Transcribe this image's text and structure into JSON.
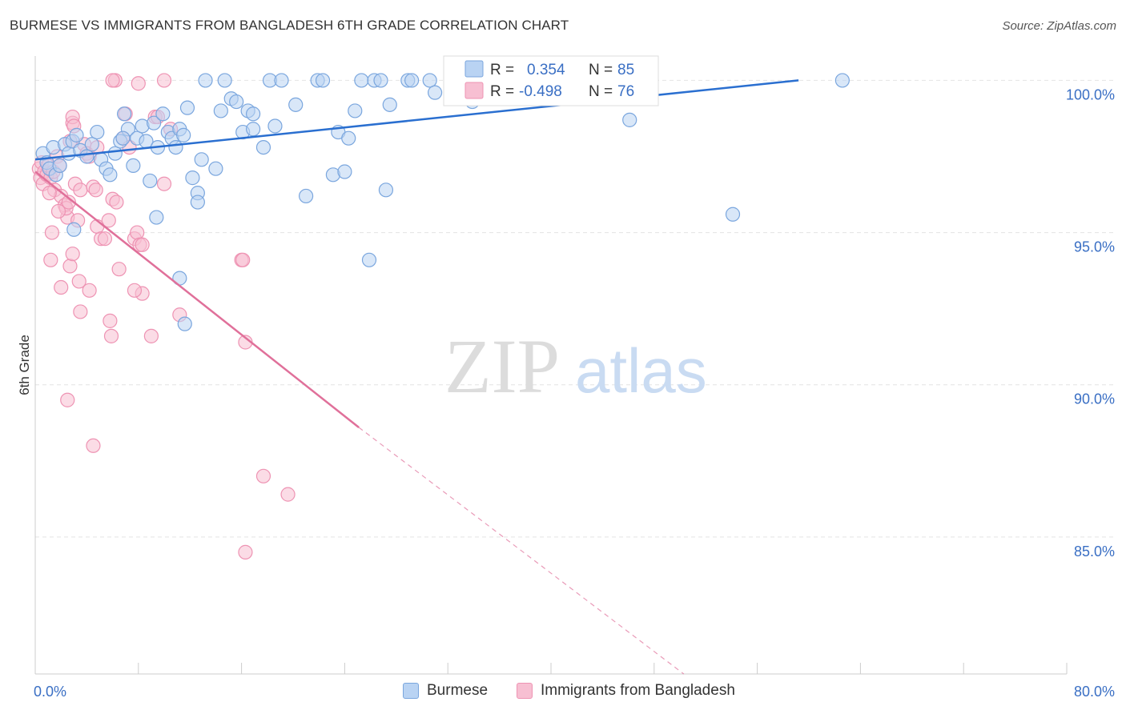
{
  "title": "BURMESE VS IMMIGRANTS FROM BANGLADESH 6TH GRADE CORRELATION CHART",
  "source": "Source: ZipAtlas.com",
  "watermark": {
    "zip": "ZIP",
    "atlas": "atlas"
  },
  "legend_stats": [
    {
      "r_label": "R =",
      "r_value": "0.354",
      "n_label": "N =",
      "n_value": "85"
    },
    {
      "r_label": "R =",
      "r_value": "-0.498",
      "n_label": "N =",
      "n_value": "76"
    }
  ],
  "colors": {
    "burmese_fill": "#b9d3f3",
    "burmese_stroke": "#7aa6de",
    "burmese_line": "#2a6fd0",
    "bangladesh_fill": "#f7bfd2",
    "bangladesh_stroke": "#ee93b3",
    "bangladesh_line": "#e0709a",
    "value_text": "#3a6fc4"
  },
  "chart_data": {
    "type": "scatter",
    "title": "BURMESE VS IMMIGRANTS FROM BANGLADESH 6TH GRADE CORRELATION CHART",
    "xlabel": "",
    "ylabel": "6th Grade",
    "xlim": [
      0,
      80
    ],
    "ylim": [
      80.5,
      100.8
    ],
    "x_tick_labels": [
      "0.0%",
      "80.0%"
    ],
    "y_ticks": [
      85,
      90,
      95,
      100
    ],
    "y_tick_labels": [
      "85.0%",
      "90.0%",
      "95.0%",
      "100.0%"
    ],
    "grid": true,
    "legend_placement": "bottom-center",
    "series": [
      {
        "name": "Burmese",
        "r": 0.354,
        "n": 85,
        "trend": {
          "x": [
            0,
            59.2
          ],
          "y": [
            97.4,
            100.0
          ]
        },
        "points": [
          [
            0.6,
            97.6
          ],
          [
            0.9,
            97.3
          ],
          [
            1.1,
            97.1
          ],
          [
            1.4,
            97.8
          ],
          [
            1.6,
            96.9
          ],
          [
            1.9,
            97.2
          ],
          [
            2.3,
            97.9
          ],
          [
            2.6,
            97.6
          ],
          [
            2.9,
            98.0
          ],
          [
            3.2,
            98.2
          ],
          [
            3.5,
            97.7
          ],
          [
            4.0,
            97.5
          ],
          [
            4.4,
            97.9
          ],
          [
            4.8,
            98.3
          ],
          [
            5.1,
            97.4
          ],
          [
            5.5,
            97.1
          ],
          [
            5.8,
            96.9
          ],
          [
            6.2,
            97.6
          ],
          [
            6.6,
            98.0
          ],
          [
            6.9,
            98.9
          ],
          [
            7.2,
            98.4
          ],
          [
            7.6,
            97.2
          ],
          [
            7.9,
            98.1
          ],
          [
            8.3,
            98.5
          ],
          [
            8.6,
            98.0
          ],
          [
            8.9,
            96.7
          ],
          [
            9.2,
            98.6
          ],
          [
            9.5,
            97.8
          ],
          [
            9.9,
            98.9
          ],
          [
            10.3,
            98.3
          ],
          [
            10.6,
            98.1
          ],
          [
            10.9,
            97.8
          ],
          [
            11.2,
            98.4
          ],
          [
            11.5,
            98.2
          ],
          [
            11.8,
            99.1
          ],
          [
            12.2,
            96.8
          ],
          [
            12.6,
            96.3
          ],
          [
            12.9,
            97.4
          ],
          [
            13.2,
            100.0
          ],
          [
            14.0,
            97.1
          ],
          [
            14.4,
            99.0
          ],
          [
            14.7,
            100.0
          ],
          [
            15.2,
            99.4
          ],
          [
            15.6,
            99.3
          ],
          [
            16.1,
            98.3
          ],
          [
            16.5,
            99.0
          ],
          [
            16.9,
            98.4
          ],
          [
            17.7,
            97.8
          ],
          [
            18.2,
            100.0
          ],
          [
            18.6,
            98.5
          ],
          [
            19.1,
            100.0
          ],
          [
            20.2,
            99.2
          ],
          [
            21.0,
            96.2
          ],
          [
            21.9,
            100.0
          ],
          [
            22.3,
            100.0
          ],
          [
            23.1,
            96.9
          ],
          [
            23.5,
            98.3
          ],
          [
            24.0,
            97.0
          ],
          [
            24.3,
            98.1
          ],
          [
            24.8,
            99.0
          ],
          [
            25.3,
            100.0
          ],
          [
            26.3,
            100.0
          ],
          [
            26.8,
            100.0
          ],
          [
            27.2,
            96.4
          ],
          [
            27.5,
            99.2
          ],
          [
            28.9,
            100.0
          ],
          [
            29.2,
            100.0
          ],
          [
            30.6,
            100.0
          ],
          [
            31.0,
            99.6
          ],
          [
            33.4,
            100.0
          ],
          [
            33.9,
            99.3
          ],
          [
            34.4,
            99.8
          ],
          [
            35.0,
            100.0
          ],
          [
            37.0,
            100.0
          ],
          [
            46.1,
            98.7
          ],
          [
            54.1,
            95.6
          ],
          [
            62.6,
            100.0
          ],
          [
            3.0,
            95.1
          ],
          [
            9.4,
            95.5
          ],
          [
            11.2,
            93.5
          ],
          [
            11.6,
            92.0
          ],
          [
            12.6,
            96.0
          ],
          [
            25.9,
            94.1
          ],
          [
            16.9,
            98.9
          ],
          [
            6.8,
            98.1
          ]
        ]
      },
      {
        "name": "Immigrants from Bangladesh",
        "r": -0.498,
        "n": 76,
        "trend": {
          "x": [
            0,
            25.1
          ],
          "y": [
            97.0,
            88.6
          ]
        },
        "trend_dashed": {
          "x": [
            25.1,
            50.3
          ],
          "y": [
            88.6,
            80.5
          ]
        },
        "points": [
          [
            0.3,
            97.1
          ],
          [
            0.4,
            96.8
          ],
          [
            0.5,
            97.3
          ],
          [
            0.6,
            96.6
          ],
          [
            0.7,
            97.0
          ],
          [
            0.9,
            96.9
          ],
          [
            1.0,
            97.2
          ],
          [
            1.2,
            96.8
          ],
          [
            1.4,
            97.0
          ],
          [
            1.5,
            96.4
          ],
          [
            1.7,
            97.5
          ],
          [
            1.9,
            97.2
          ],
          [
            2.0,
            96.2
          ],
          [
            2.3,
            95.9
          ],
          [
            2.5,
            95.5
          ],
          [
            2.7,
            98.0
          ],
          [
            2.9,
            98.6
          ],
          [
            3.1,
            96.6
          ],
          [
            3.3,
            95.4
          ],
          [
            3.5,
            96.4
          ],
          [
            3.8,
            97.9
          ],
          [
            4.0,
            97.6
          ],
          [
            4.2,
            97.5
          ],
          [
            4.5,
            96.5
          ],
          [
            4.8,
            95.2
          ],
          [
            5.1,
            94.8
          ],
          [
            5.4,
            94.8
          ],
          [
            5.7,
            95.4
          ],
          [
            6.0,
            96.1
          ],
          [
            6.3,
            96.0
          ],
          [
            6.5,
            93.8
          ],
          [
            6.8,
            98.1
          ],
          [
            7.0,
            98.9
          ],
          [
            7.3,
            97.8
          ],
          [
            7.7,
            94.8
          ],
          [
            7.9,
            95.0
          ],
          [
            8.1,
            94.6
          ],
          [
            8.3,
            93.0
          ],
          [
            9.0,
            91.6
          ],
          [
            9.3,
            98.8
          ],
          [
            9.5,
            98.8
          ],
          [
            10.0,
            96.6
          ],
          [
            10.5,
            98.4
          ],
          [
            11.2,
            92.3
          ],
          [
            6.2,
            100.0
          ],
          [
            8.0,
            99.9
          ],
          [
            10.0,
            100.0
          ],
          [
            6.0,
            100.0
          ],
          [
            2.9,
            98.8
          ],
          [
            4.7,
            96.4
          ],
          [
            5.9,
            91.6
          ],
          [
            5.8,
            92.1
          ],
          [
            7.7,
            93.1
          ],
          [
            8.3,
            94.6
          ],
          [
            3.4,
            93.4
          ],
          [
            3.5,
            92.4
          ],
          [
            4.2,
            93.1
          ],
          [
            2.0,
            93.2
          ],
          [
            1.2,
            94.1
          ],
          [
            2.7,
            93.9
          ],
          [
            2.9,
            94.3
          ],
          [
            1.3,
            95.0
          ],
          [
            2.4,
            95.8
          ],
          [
            1.8,
            95.7
          ],
          [
            2.6,
            96.0
          ],
          [
            1.1,
            96.3
          ],
          [
            2.5,
            89.5
          ],
          [
            4.5,
            88.0
          ],
          [
            16.0,
            94.1
          ],
          [
            16.1,
            94.1
          ],
          [
            16.3,
            91.4
          ],
          [
            17.7,
            87.0
          ],
          [
            19.6,
            86.4
          ],
          [
            16.3,
            84.5
          ],
          [
            4.8,
            97.8
          ],
          [
            3.0,
            98.5
          ]
        ]
      }
    ]
  }
}
